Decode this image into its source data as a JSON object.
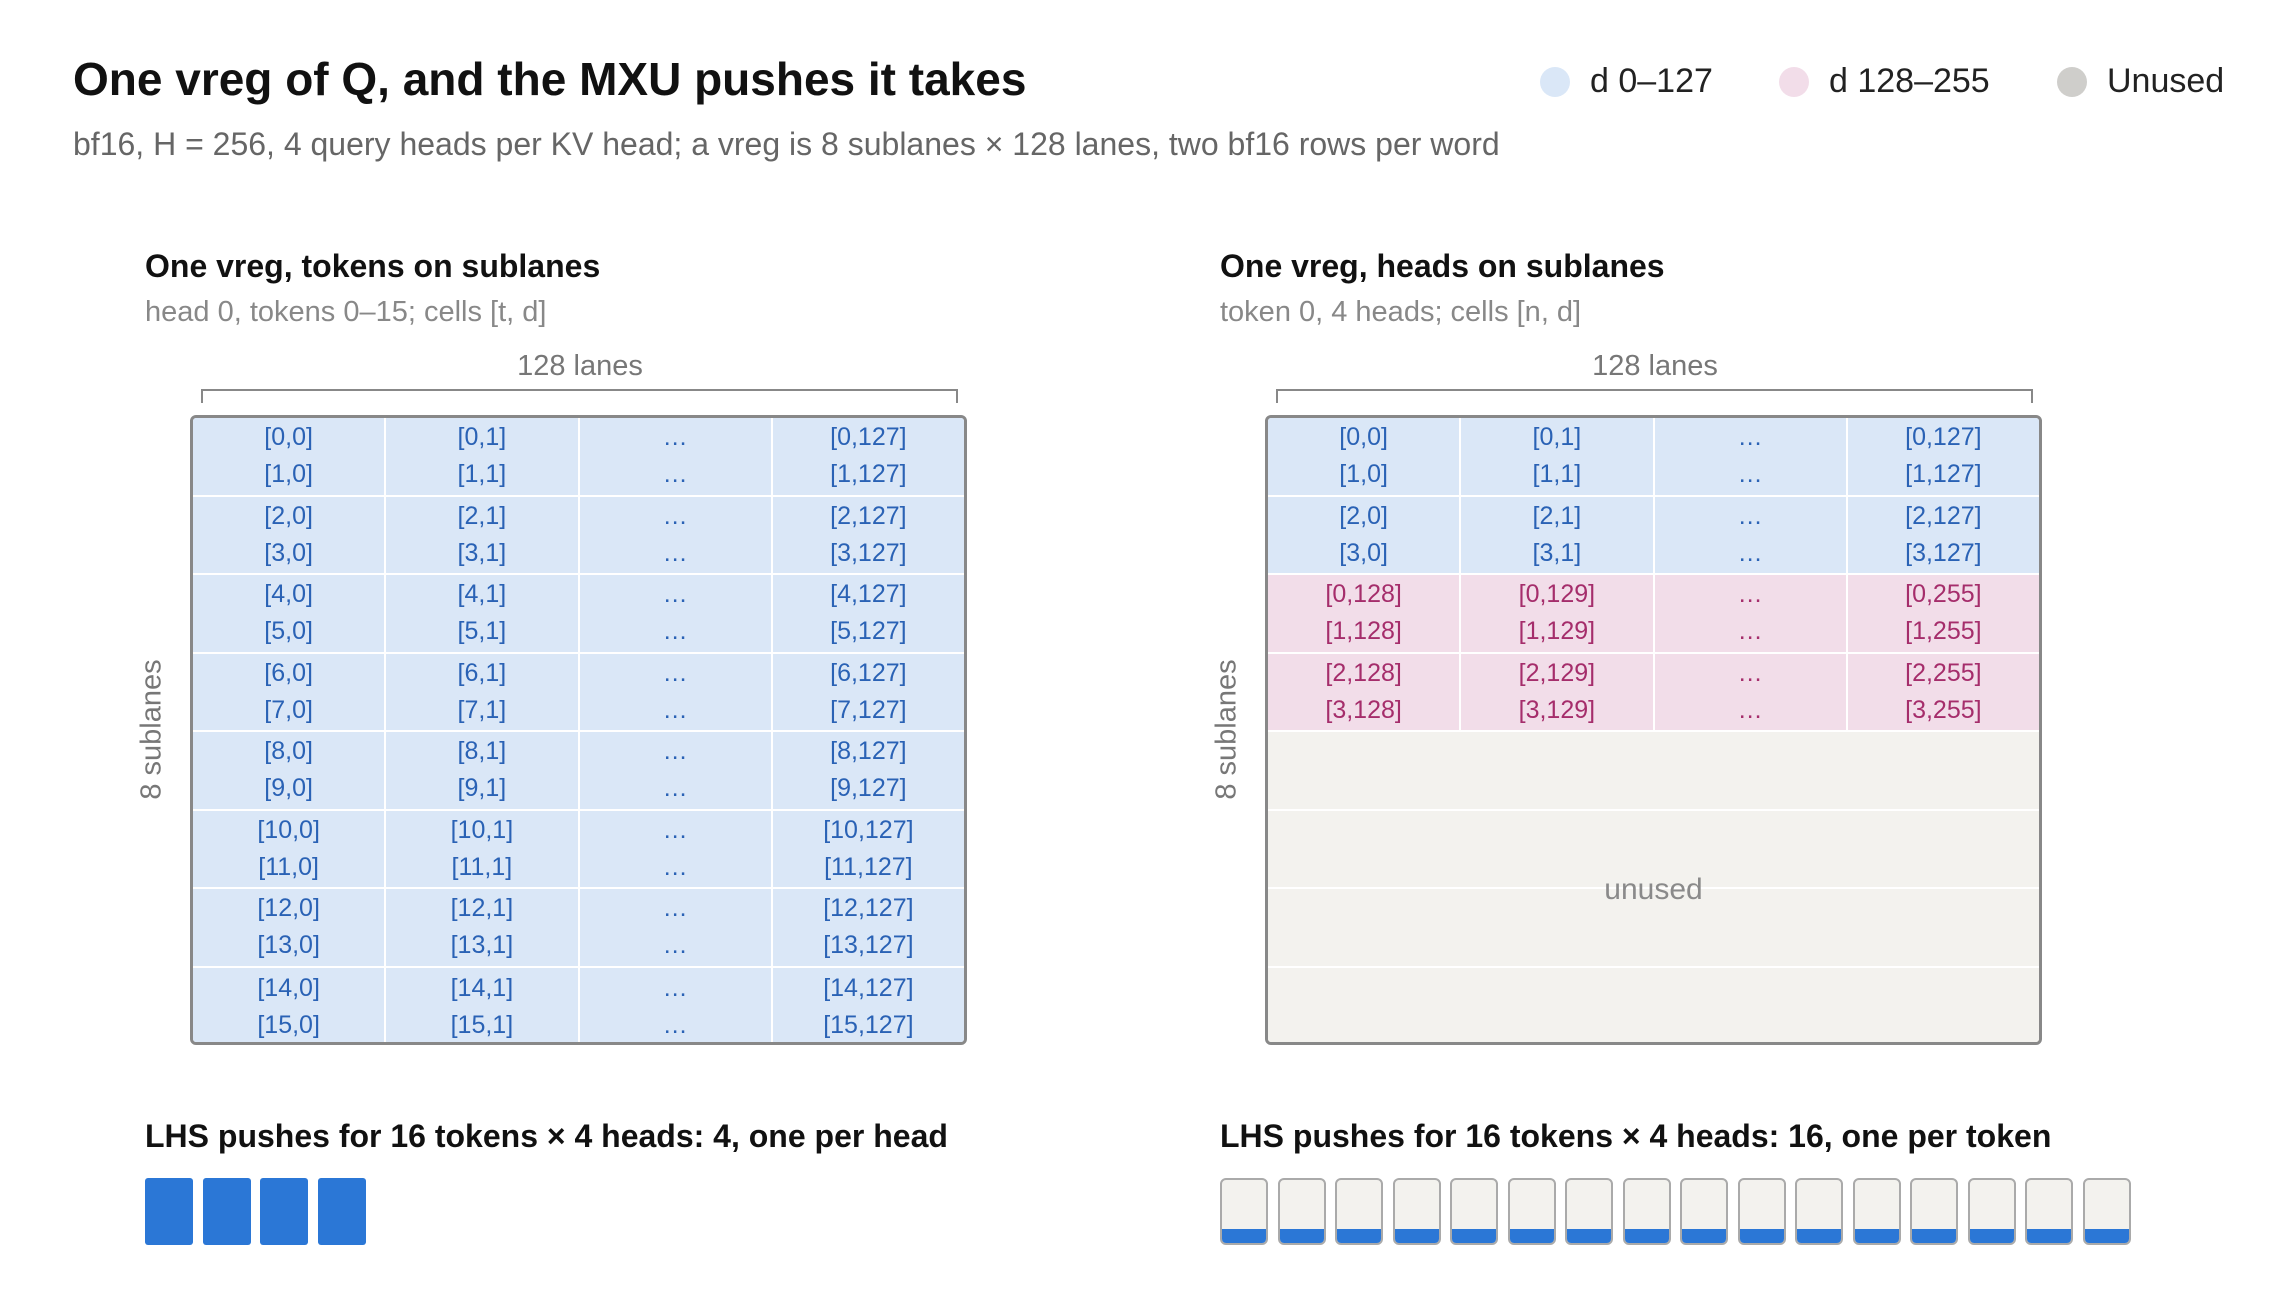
{
  "title": "One vreg of Q, and the MXU pushes it takes",
  "subtitle": "bf16, H = 256, 4 query heads per KV head; a vreg is 8 sublanes × 128 lanes, two bf16 rows per word",
  "legend": [
    {
      "label": "d 0–127",
      "color": "#dae7f7"
    },
    {
      "label": "d 128–255",
      "color": "#f2dde9"
    },
    {
      "label": "Unused",
      "color": "#cfcecb"
    }
  ],
  "colors": {
    "blue_fill": "#dae7f7",
    "blue_text": "#2a62b5",
    "pink_fill": "#f2dde9",
    "pink_text": "#a52d6b",
    "unused_fill": "#f3f2ee",
    "push_blue": "#2b77d6"
  },
  "left_panel": {
    "title": "One vreg, tokens on sublanes",
    "subtitle": "head 0, tokens 0–15; cells [t, d]",
    "lanes_label": "128 lanes",
    "sublanes_label": "8 sublanes",
    "rows": [
      {
        "kind": "blue",
        "cells": [
          [
            "[0,0]",
            "[1,0]"
          ],
          [
            "[0,1]",
            "[1,1]"
          ],
          [
            "…",
            "…"
          ],
          [
            "[0,127]",
            "[1,127]"
          ]
        ]
      },
      {
        "kind": "blue",
        "cells": [
          [
            "[2,0]",
            "[3,0]"
          ],
          [
            "[2,1]",
            "[3,1]"
          ],
          [
            "…",
            "…"
          ],
          [
            "[2,127]",
            "[3,127]"
          ]
        ]
      },
      {
        "kind": "blue",
        "cells": [
          [
            "[4,0]",
            "[5,0]"
          ],
          [
            "[4,1]",
            "[5,1]"
          ],
          [
            "…",
            "…"
          ],
          [
            "[4,127]",
            "[5,127]"
          ]
        ]
      },
      {
        "kind": "blue",
        "cells": [
          [
            "[6,0]",
            "[7,0]"
          ],
          [
            "[6,1]",
            "[7,1]"
          ],
          [
            "…",
            "…"
          ],
          [
            "[6,127]",
            "[7,127]"
          ]
        ]
      },
      {
        "kind": "blue",
        "cells": [
          [
            "[8,0]",
            "[9,0]"
          ],
          [
            "[8,1]",
            "[9,1]"
          ],
          [
            "…",
            "…"
          ],
          [
            "[8,127]",
            "[9,127]"
          ]
        ]
      },
      {
        "kind": "blue",
        "cells": [
          [
            "[10,0]",
            "[11,0]"
          ],
          [
            "[10,1]",
            "[11,1]"
          ],
          [
            "…",
            "…"
          ],
          [
            "[10,127]",
            "[11,127]"
          ]
        ]
      },
      {
        "kind": "blue",
        "cells": [
          [
            "[12,0]",
            "[13,0]"
          ],
          [
            "[12,1]",
            "[13,1]"
          ],
          [
            "…",
            "…"
          ],
          [
            "[12,127]",
            "[13,127]"
          ]
        ]
      },
      {
        "kind": "blue",
        "cells": [
          [
            "[14,0]",
            "[15,0]"
          ],
          [
            "[14,1]",
            "[15,1]"
          ],
          [
            "…",
            "…"
          ],
          [
            "[14,127]",
            "[15,127]"
          ]
        ]
      }
    ],
    "push_title": "LHS pushes for 16 tokens × 4 heads: 4, one per head",
    "push_count": 4
  },
  "right_panel": {
    "title": "One vreg, heads on sublanes",
    "subtitle": "token 0, 4 heads; cells [n, d]",
    "lanes_label": "128 lanes",
    "sublanes_label": "8 sublanes",
    "unused_label": "unused",
    "rows": [
      {
        "kind": "blue",
        "cells": [
          [
            "[0,0]",
            "[1,0]"
          ],
          [
            "[0,1]",
            "[1,1]"
          ],
          [
            "…",
            "…"
          ],
          [
            "[0,127]",
            "[1,127]"
          ]
        ]
      },
      {
        "kind": "blue",
        "cells": [
          [
            "[2,0]",
            "[3,0]"
          ],
          [
            "[2,1]",
            "[3,1]"
          ],
          [
            "…",
            "…"
          ],
          [
            "[2,127]",
            "[3,127]"
          ]
        ]
      },
      {
        "kind": "pink",
        "cells": [
          [
            "[0,128]",
            "[1,128]"
          ],
          [
            "[0,129]",
            "[1,129]"
          ],
          [
            "…",
            "…"
          ],
          [
            "[0,255]",
            "[1,255]"
          ]
        ]
      },
      {
        "kind": "pink",
        "cells": [
          [
            "[2,128]",
            "[3,128]"
          ],
          [
            "[2,129]",
            "[3,129]"
          ],
          [
            "…",
            "…"
          ],
          [
            "[2,255]",
            "[3,255]"
          ]
        ]
      },
      {
        "kind": "unused",
        "cells": []
      },
      {
        "kind": "unused",
        "cells": []
      },
      {
        "kind": "unused",
        "cells": []
      },
      {
        "kind": "unused",
        "cells": []
      }
    ],
    "push_title": "LHS pushes for 16 tokens × 4 heads: 16, one per token",
    "push_count": 16
  }
}
